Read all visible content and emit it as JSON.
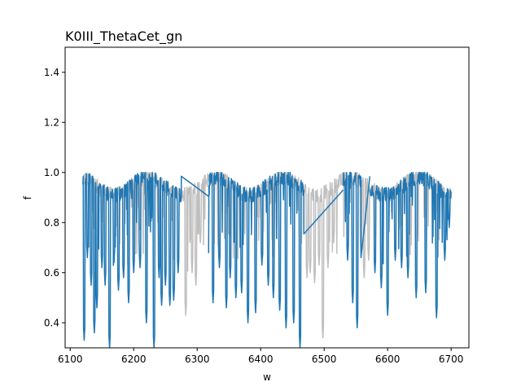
{
  "chart_data": {
    "type": "line",
    "title": "K0III_ThetaCet_gn",
    "xlabel": "w",
    "ylabel": "f",
    "xlim": [
      6092,
      6728
    ],
    "ylim": [
      0.3,
      1.5
    ],
    "xticks": [
      6100,
      6200,
      6300,
      6400,
      6500,
      6600,
      6700
    ],
    "yticks": [
      0.4,
      0.6,
      0.8,
      1.0,
      1.2,
      1.4
    ],
    "xtick_labels": [
      "6100",
      "6200",
      "6300",
      "6400",
      "6500",
      "6600",
      "6700"
    ],
    "ytick_labels": [
      "0.4",
      "0.6",
      "0.8",
      "1.0",
      "1.2",
      "1.4"
    ],
    "grid": false,
    "legend": "none",
    "series": [
      {
        "role": "masked-spectrum",
        "color": "#bfbfbf",
        "x_start": 6120,
        "x_end": 6700,
        "continuum": 0.945,
        "absorption_lines": [
          [
            6282,
            0.43
          ],
          [
            6292,
            0.6
          ],
          [
            6298,
            0.55
          ],
          [
            6305,
            0.72
          ],
          [
            6473,
            0.58
          ],
          [
            6478,
            0.6
          ],
          [
            6485,
            0.56
          ],
          [
            6492,
            0.63
          ],
          [
            6498,
            0.34
          ],
          [
            6506,
            0.62
          ],
          [
            6515,
            0.72
          ],
          [
            6558,
            0.68
          ],
          [
            6563,
            0.58
          ],
          [
            6570,
            0.65
          ]
        ]
      },
      {
        "role": "spectrum",
        "color": "#1f77b4",
        "x_start": 6120,
        "x_end": 6700,
        "continuum": 0.945,
        "gaps": [
          [
            6275,
            6318
          ],
          [
            6468,
            6530
          ],
          [
            6558,
            6572
          ]
        ],
        "bridges": [
          [
            [
              6275,
              0.985
            ],
            [
              6318,
              0.905
            ]
          ],
          [
            [
              6468,
              0.755
            ],
            [
              6530,
              0.93
            ]
          ],
          [
            [
              6558,
              0.66
            ],
            [
              6572,
              0.985
            ]
          ]
        ],
        "absorption_lines": [
          [
            6122,
            0.33
          ],
          [
            6127,
            0.66
          ],
          [
            6133,
            0.55
          ],
          [
            6138,
            0.36
          ],
          [
            6142,
            0.46
          ],
          [
            6150,
            0.62
          ],
          [
            6155,
            0.55
          ],
          [
            6162,
            0.3
          ],
          [
            6169,
            0.64
          ],
          [
            6176,
            0.53
          ],
          [
            6184,
            0.58
          ],
          [
            6192,
            0.48
          ],
          [
            6200,
            0.6
          ],
          [
            6210,
            0.62
          ],
          [
            6220,
            0.4
          ],
          [
            6232,
            0.3
          ],
          [
            6240,
            0.58
          ],
          [
            6244,
            0.47
          ],
          [
            6250,
            0.55
          ],
          [
            6257,
            0.47
          ],
          [
            6263,
            0.49
          ],
          [
            6270,
            0.6
          ],
          [
            6325,
            0.48
          ],
          [
            6335,
            0.62
          ],
          [
            6346,
            0.46
          ],
          [
            6352,
            0.58
          ],
          [
            6361,
            0.5
          ],
          [
            6370,
            0.52
          ],
          [
            6380,
            0.4
          ],
          [
            6392,
            0.44
          ],
          [
            6402,
            0.63
          ],
          [
            6412,
            0.55
          ],
          [
            6420,
            0.5
          ],
          [
            6430,
            0.45
          ],
          [
            6440,
            0.38
          ],
          [
            6452,
            0.4
          ],
          [
            6462,
            0.3
          ],
          [
            6537,
            0.65
          ],
          [
            6545,
            0.48
          ],
          [
            6552,
            0.38
          ],
          [
            6563,
            0.3
          ],
          [
            6580,
            0.6
          ],
          [
            6590,
            0.54
          ],
          [
            6600,
            0.43
          ],
          [
            6612,
            0.65
          ],
          [
            6622,
            0.62
          ],
          [
            6632,
            0.58
          ],
          [
            6645,
            0.5
          ],
          [
            6660,
            0.52
          ],
          [
            6677,
            0.42
          ],
          [
            6690,
            0.65
          ],
          [
            6697,
            0.78
          ]
        ]
      }
    ]
  }
}
